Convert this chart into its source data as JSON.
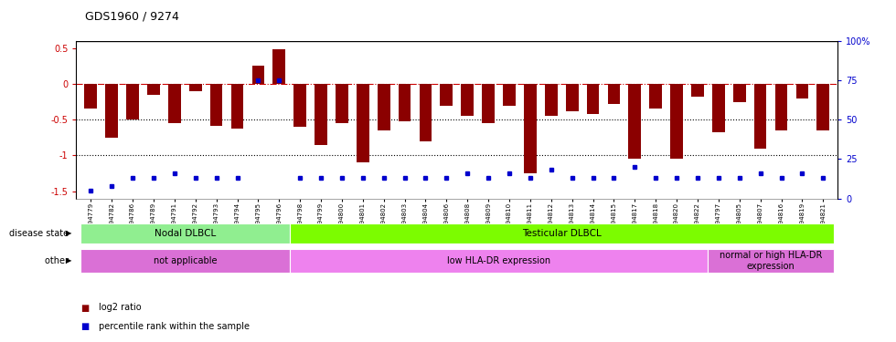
{
  "title": "GDS1960 / 9274",
  "samples": [
    "GSM94779",
    "GSM94782",
    "GSM94786",
    "GSM94789",
    "GSM94791",
    "GSM94792",
    "GSM94793",
    "GSM94794",
    "GSM94795",
    "GSM94796",
    "GSM94798",
    "GSM94799",
    "GSM94800",
    "GSM94801",
    "GSM94802",
    "GSM94803",
    "GSM94804",
    "GSM94806",
    "GSM94808",
    "GSM94809",
    "GSM94810",
    "GSM94811",
    "GSM94812",
    "GSM94813",
    "GSM94814",
    "GSM94815",
    "GSM94817",
    "GSM94818",
    "GSM94820",
    "GSM94822",
    "GSM94797",
    "GSM94805",
    "GSM94807",
    "GSM94816",
    "GSM94819",
    "GSM94821"
  ],
  "log2_ratio": [
    -0.35,
    -0.75,
    -0.5,
    -0.15,
    -0.55,
    -0.1,
    -0.58,
    -0.62,
    0.25,
    0.48,
    -0.6,
    -0.85,
    -0.55,
    -1.1,
    -0.65,
    -0.52,
    -0.8,
    -0.3,
    -0.45,
    -0.55,
    -0.3,
    -1.25,
    -0.45,
    -0.38,
    -0.42,
    -0.28,
    -1.05,
    -0.35,
    -1.05,
    -0.18,
    -0.68,
    -0.25,
    -0.9,
    -0.65,
    -0.2,
    -0.65
  ],
  "percentile": [
    5,
    8,
    13,
    13,
    16,
    13,
    13,
    13,
    75,
    75,
    13,
    13,
    13,
    13,
    13,
    13,
    13,
    13,
    16,
    13,
    16,
    13,
    18,
    13,
    13,
    13,
    20,
    13,
    13,
    13,
    13,
    13,
    16,
    13,
    16,
    13
  ],
  "bar_color": "#8B0000",
  "dot_color": "#0000CD",
  "ylim_left": [
    -1.6,
    0.6
  ],
  "ylim_right": [
    0,
    100
  ],
  "hline_zero": 0.0,
  "hline_m05": -0.5,
  "hline_m1": -1.0,
  "disease_state_groups": [
    {
      "label": "Nodal DLBCL",
      "start": 0,
      "end": 9,
      "color": "#90EE90"
    },
    {
      "label": "Testicular DLBCL",
      "start": 10,
      "end": 35,
      "color": "#7CFC00"
    }
  ],
  "other_groups": [
    {
      "label": "not applicable",
      "start": 0,
      "end": 9,
      "color": "#DA70D6"
    },
    {
      "label": "low HLA-DR expression",
      "start": 10,
      "end": 29,
      "color": "#EE82EE"
    },
    {
      "label": "normal or high HLA-DR\nexpression",
      "start": 30,
      "end": 35,
      "color": "#DA70D6"
    }
  ],
  "disease_state_label": "disease state",
  "other_label": "other",
  "legend_red_label": "log2 ratio",
  "legend_blue_label": "percentile rank within the sample"
}
